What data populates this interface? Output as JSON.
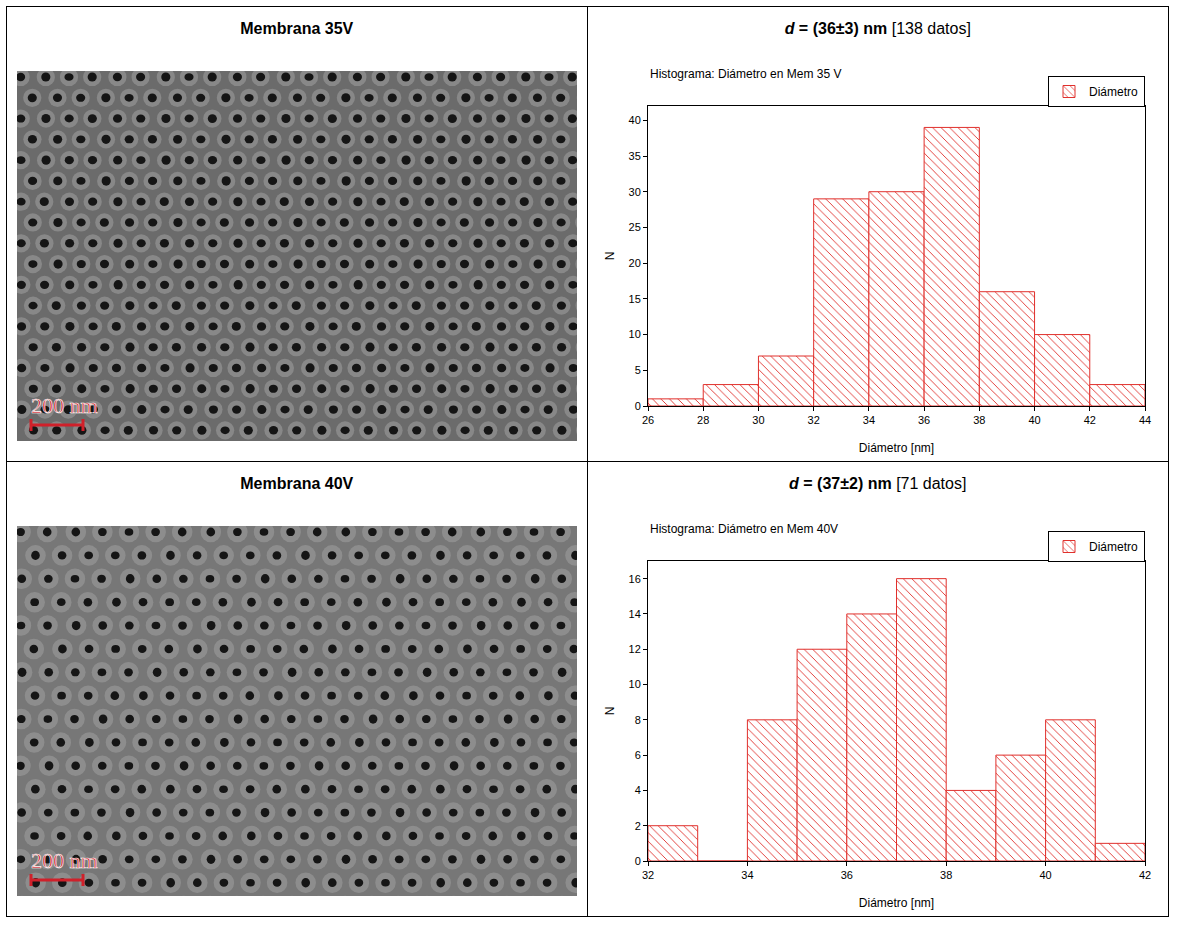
{
  "rows": [
    {
      "label": "Membrana 35V",
      "measurement": {
        "symbol": "d",
        "value": " = (36±3) nm",
        "note": "[138 datos]"
      },
      "scale_bar": "200 nm"
    },
    {
      "label": "Membrana 40V",
      "measurement": {
        "symbol": "d",
        "value": " = (37±2) nm",
        "note": "[71 datos]"
      },
      "scale_bar": "200 nm"
    }
  ],
  "chart_data": [
    {
      "type": "histogram",
      "title": "Histograma: Diámetro en Mem 35 V",
      "x_label": "Diámetro [nm]",
      "y_label": "N",
      "bins": [
        26,
        28,
        30,
        32,
        34,
        36,
        38,
        40,
        42,
        44
      ],
      "series": [
        {
          "name": "Diámetro",
          "color": "#e0302c",
          "values": [
            1,
            3,
            7,
            29,
            30,
            39,
            16,
            10,
            3
          ]
        }
      ],
      "xlim": [
        26,
        44
      ],
      "xticks": [
        26,
        28,
        30,
        32,
        34,
        36,
        38,
        40,
        42,
        44
      ],
      "ylim": [
        0,
        42
      ],
      "yticks": [
        0,
        5,
        10,
        15,
        20,
        25,
        30,
        35,
        40
      ],
      "legend": "top right",
      "grid": false
    },
    {
      "type": "histogram",
      "title": "Histograma: Diámetro en Mem 40V",
      "x_label": "Diámetro [nm]",
      "y_label": "N",
      "bins": [
        32,
        33,
        34,
        35,
        36,
        37,
        38,
        39,
        40,
        41,
        42
      ],
      "series": [
        {
          "name": "Diámetro",
          "color": "#e0302c",
          "values": [
            2,
            0,
            8,
            12,
            14,
            16,
            4,
            6,
            8,
            1
          ]
        }
      ],
      "xlim": [
        32,
        42
      ],
      "xticks": [
        32,
        34,
        36,
        38,
        40,
        42
      ],
      "ylim": [
        0,
        17
      ],
      "yticks": [
        0,
        2,
        4,
        6,
        8,
        10,
        12,
        14,
        16
      ],
      "legend": "top right",
      "grid": false
    }
  ]
}
